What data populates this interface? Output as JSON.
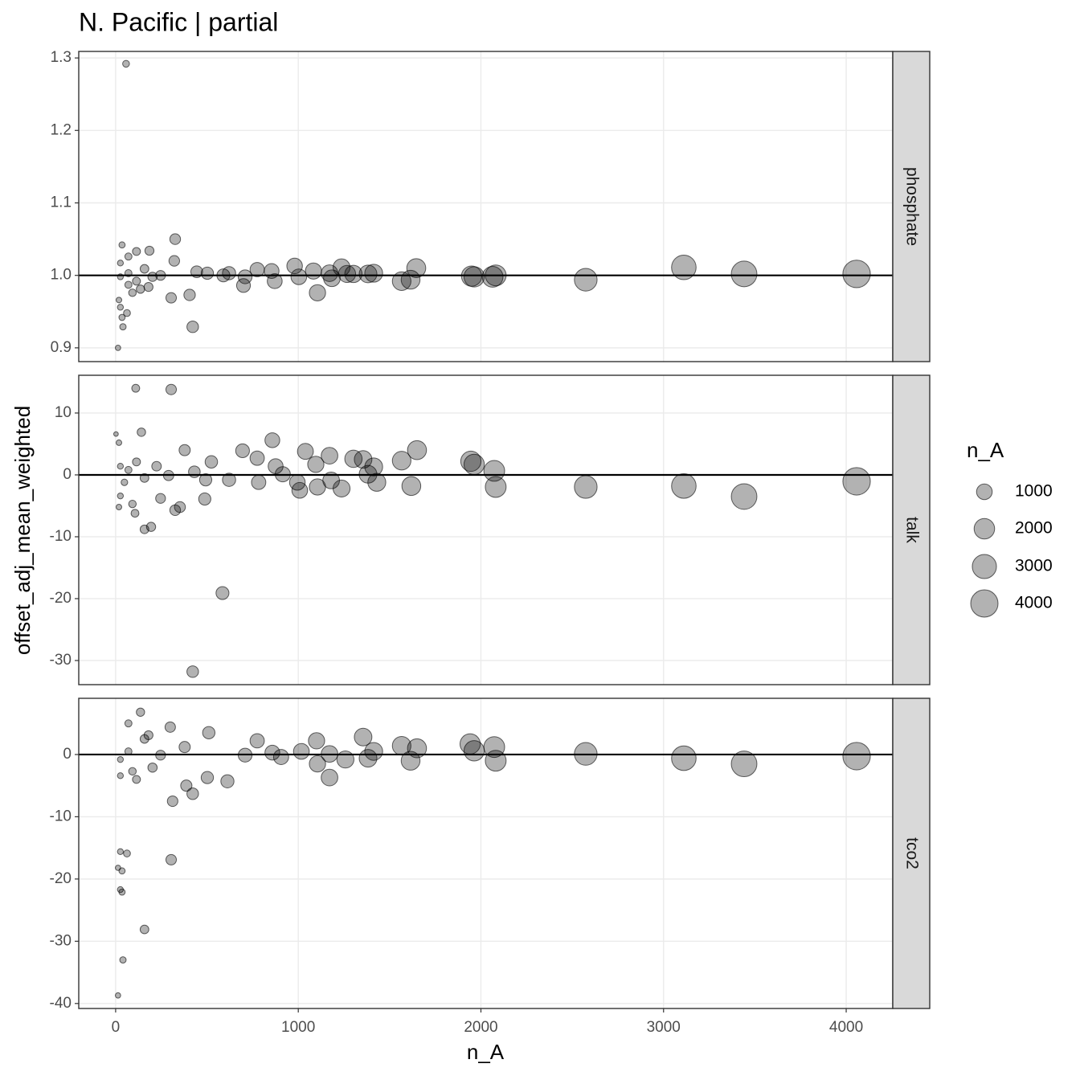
{
  "chart_data": {
    "type": "scatter",
    "title": "N. Pacific | partial",
    "x_label": "n_A",
    "y_label": "offset_adj_mean_weighted",
    "xlim": [
      -202,
      4255
    ],
    "xticks": [
      0,
      1000,
      2000,
      3000,
      4000
    ],
    "color": "#000000",
    "alpha": 0.3,
    "grid": true,
    "legend": {
      "title": "n_A",
      "position": "right",
      "breaks": [
        1000,
        2000,
        3000,
        4000
      ]
    },
    "facets": [
      {
        "name": "phosphate",
        "reference_line": 1.0,
        "ylim": [
          0.881,
          1.309
        ],
        "yticks": [
          0.9,
          {
            "value": 1.0,
            "label": "1.0"
          },
          1.1,
          1.2,
          1.3
        ],
        "x": [
          4057,
          3441,
          3111,
          2574,
          2081,
          2064,
          1963,
          1949,
          1646,
          1615,
          1566,
          1413,
          1382,
          1302,
          1237,
          1267,
          1171,
          1184,
          1105,
          1083,
          980,
          1003,
          871,
          854,
          775,
          709,
          700,
          621,
          590,
          502,
          444,
          405,
          304,
          326,
          422,
          321,
          185,
          35,
          57,
          13,
          35,
          40,
          26,
          18,
          62,
          114,
          70,
          26,
          70,
          114,
          158,
          202,
          246,
          92,
          136,
          26,
          70,
          180
        ],
        "y": [
          1.002,
          1.002,
          1.011,
          0.994,
          1.0,
          0.998,
          0.998,
          0.999,
          1.01,
          0.994,
          0.992,
          1.003,
          1.002,
          1.002,
          1.011,
          1.002,
          1.003,
          0.996,
          0.976,
          1.006,
          1.013,
          0.998,
          0.992,
          1.006,
          1.008,
          0.998,
          0.986,
          1.003,
          1.0,
          1.003,
          1.005,
          0.973,
          0.969,
          1.05,
          0.929,
          1.02,
          1.034,
          1.042,
          1.292,
          0.9,
          0.942,
          0.929,
          0.956,
          0.966,
          0.948,
          1.033,
          1.026,
          0.998,
          1.003,
          0.992,
          1.009,
          0.998,
          1.0,
          0.976,
          0.981,
          1.017,
          0.987,
          0.984
        ]
      },
      {
        "name": "talk",
        "reference_line": 0,
        "ylim": [
          -33.9,
          16.1
        ],
        "yticks": [
          -30,
          -20,
          -10,
          0,
          10
        ],
        "x": [
          4057,
          3441,
          3111,
          2574,
          2081,
          2073,
          1963,
          1945,
          1650,
          1566,
          1619,
          1430,
          1413,
          1382,
          1355,
          1302,
          1237,
          1171,
          1180,
          1105,
          1096,
          1039,
          1008,
          995,
          915,
          858,
          876,
          775,
          783,
          695,
          621,
          585,
          422,
          488,
          493,
          352,
          304,
          110,
          326,
          194,
          158,
          141,
          2,
          18,
          18,
          92,
          106,
          246,
          378,
          524,
          431,
          26,
          48,
          70,
          114,
          158,
          224,
          290,
          26
        ],
        "y": [
          -1.04,
          -3.5,
          -1.8,
          -1.95,
          -1.95,
          0.65,
          1.7,
          2.2,
          4.0,
          2.3,
          -1.8,
          -1.2,
          1.3,
          0.1,
          2.5,
          2.6,
          -2.2,
          3.1,
          -0.9,
          -1.95,
          1.7,
          3.8,
          -2.5,
          -1.2,
          0.1,
          5.6,
          1.4,
          2.7,
          -1.2,
          3.9,
          -0.8,
          -19.1,
          -31.8,
          -3.9,
          -0.8,
          -5.2,
          13.8,
          14.0,
          -5.7,
          -8.4,
          -8.8,
          6.9,
          6.6,
          5.2,
          -5.2,
          -4.7,
          -6.2,
          -3.8,
          4.0,
          2.1,
          0.5,
          1.4,
          -1.2,
          0.8,
          2.1,
          -0.5,
          1.4,
          -0.1,
          -3.4
        ]
      },
      {
        "name": "tco2",
        "reference_line": 0,
        "ylim": [
          -40.8,
          9.03
        ],
        "yticks": [
          -40,
          -30,
          -20,
          -10,
          0
        ],
        "x": [
          4057,
          3441,
          3111,
          2574,
          2081,
          2073,
          1963,
          1941,
          1650,
          1615,
          1566,
          1413,
          1355,
          1382,
          1258,
          1171,
          1171,
          1100,
          1105,
          1017,
          906,
          858,
          775,
          709,
          612,
          502,
          422,
          387,
          312,
          304,
          158,
          40,
          13,
          35,
          26,
          26,
          62,
          35,
          13,
          136,
          510,
          299,
          246,
          158,
          70,
          92,
          26,
          26,
          114,
          202,
          378,
          70,
          180
        ],
        "y": [
          -0.26,
          -1.5,
          -0.6,
          0.1,
          -1.0,
          1.2,
          0.6,
          1.7,
          1.0,
          -1.0,
          1.4,
          0.5,
          2.8,
          -0.6,
          -0.8,
          -3.7,
          0.1,
          2.2,
          -1.5,
          0.5,
          -0.4,
          0.3,
          2.2,
          -0.1,
          -4.3,
          -3.7,
          -6.3,
          -5.0,
          -7.5,
          -16.9,
          -28.1,
          -33.0,
          -38.7,
          -22.1,
          -21.7,
          -15.6,
          -15.9,
          -18.7,
          -18.2,
          6.8,
          3.5,
          4.4,
          -0.1,
          2.5,
          0.5,
          -2.7,
          -3.4,
          -0.8,
          -4.0,
          -2.1,
          1.2,
          5.0,
          3.1
        ]
      }
    ]
  }
}
